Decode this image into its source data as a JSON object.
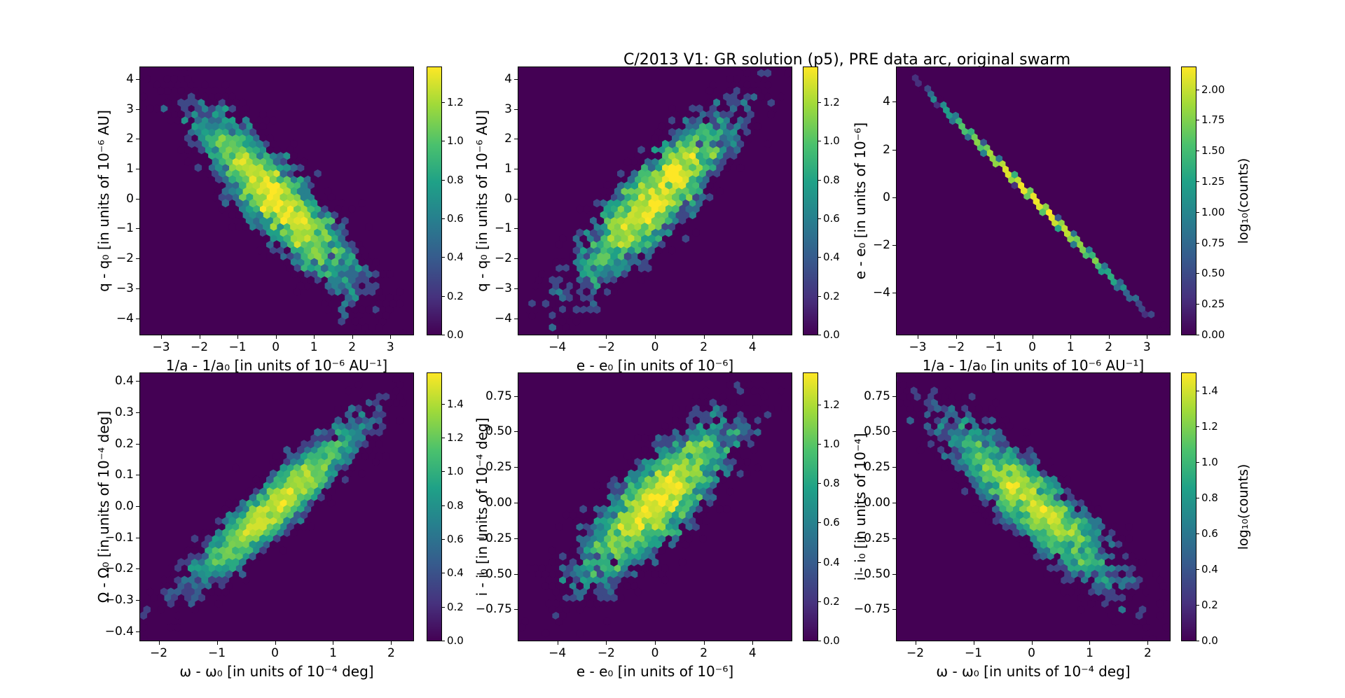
{
  "figure": {
    "title": "C/2013 V1: GR solution (p5), PRE data arc, original swarm",
    "background": "#ffffff",
    "colormap_name": "viridis",
    "colormap_stops": [
      {
        "t": 0.0,
        "color": "#440154"
      },
      {
        "t": 0.14,
        "color": "#46327e"
      },
      {
        "t": 0.29,
        "color": "#365c8d"
      },
      {
        "t": 0.43,
        "color": "#277f8e"
      },
      {
        "t": 0.57,
        "color": "#1fa187"
      },
      {
        "t": 0.71,
        "color": "#4ac16d"
      },
      {
        "t": 0.86,
        "color": "#a0da39"
      },
      {
        "t": 1.0,
        "color": "#fde725"
      }
    ]
  },
  "chart_data": [
    {
      "type": "hexbin",
      "row": 0,
      "col": 0,
      "xlabel": "1/a - 1/a₀ [in units of 10⁻⁶ AU⁻¹]",
      "ylabel": "q - q₀ [in units of 10⁻⁶ AU]",
      "xlim": [
        -3.55,
        3.6
      ],
      "ylim": [
        -4.55,
        4.4
      ],
      "xticks": [
        -3,
        -2,
        -1,
        0,
        1,
        2,
        3
      ],
      "xtick_decimals": 0,
      "yticks": [
        -4,
        -3,
        -2,
        -1,
        0,
        1,
        2,
        3,
        4
      ],
      "ytick_decimals": 0,
      "colorbar": {
        "label": "",
        "ticks": [
          0.0,
          0.2,
          0.4,
          0.6,
          0.8,
          1.0,
          1.2
        ],
        "tick_decimals": 1,
        "vmax": 1.38
      },
      "distribution": {
        "kind": "gaussian",
        "n_points": 3200,
        "sigma_x": 1.05,
        "sigma_y": 1.5,
        "correlation": -0.87,
        "gridsize": 40,
        "seed": 11
      }
    },
    {
      "type": "hexbin",
      "row": 0,
      "col": 1,
      "xlabel": "e - e₀ [in units of 10⁻⁶]",
      "ylabel": "q - q₀ [in units of 10⁻⁶ AU]",
      "xlim": [
        -5.6,
        5.6
      ],
      "ylim": [
        -4.55,
        4.4
      ],
      "xticks": [
        -4,
        -2,
        0,
        2,
        4
      ],
      "xtick_decimals": 0,
      "yticks": [
        -4,
        -3,
        -2,
        -1,
        0,
        1,
        2,
        3,
        4
      ],
      "ytick_decimals": 0,
      "colorbar": {
        "label": "",
        "ticks": [
          0.0,
          0.2,
          0.4,
          0.6,
          0.8,
          1.0,
          1.2
        ],
        "tick_decimals": 1,
        "vmax": 1.38
      },
      "distribution": {
        "kind": "gaussian",
        "n_points": 3200,
        "sigma_x": 1.65,
        "sigma_y": 1.5,
        "correlation": 0.87,
        "gridsize": 40,
        "seed": 22
      }
    },
    {
      "type": "hexbin",
      "row": 0,
      "col": 2,
      "xlabel": "1/a - 1/a₀ [in units of 10⁻⁶ AU⁻¹]",
      "ylabel": "e - e₀ [in units of 10⁻⁶]",
      "xlim": [
        -3.55,
        3.6
      ],
      "ylim": [
        -5.75,
        5.45
      ],
      "xticks": [
        -3,
        -2,
        -1,
        0,
        1,
        2,
        3
      ],
      "xtick_decimals": 0,
      "yticks": [
        -4,
        -2,
        0,
        2,
        4
      ],
      "ytick_decimals": 0,
      "colorbar": {
        "label": "log₁₀(counts)",
        "ticks": [
          0.0,
          0.25,
          0.5,
          0.75,
          1.0,
          1.25,
          1.5,
          1.75,
          2.0
        ],
        "tick_decimals": 2,
        "vmax": 2.18
      },
      "distribution": {
        "kind": "line",
        "n_points": 3200,
        "sigma_x": 1.05,
        "slope": -1.62,
        "jitter": 0.03,
        "gridsize": 44,
        "seed": 33
      }
    },
    {
      "type": "hexbin",
      "row": 1,
      "col": 0,
      "xlabel": "ω - ω₀ [in units of 10⁻⁴ deg]",
      "ylabel": "Ω - Ω₀ [in units of 10⁻⁴ deg]",
      "xlim": [
        -2.32,
        2.38
      ],
      "ylim": [
        -0.43,
        0.425
      ],
      "xticks": [
        -2,
        -1,
        0,
        1,
        2
      ],
      "xtick_decimals": 0,
      "yticks": [
        -0.4,
        -0.3,
        -0.2,
        -0.1,
        0.0,
        0.1,
        0.2,
        0.3,
        0.4
      ],
      "ytick_decimals": 1,
      "colorbar": {
        "label": "",
        "ticks": [
          0.0,
          0.2,
          0.4,
          0.6,
          0.8,
          1.0,
          1.2,
          1.4
        ],
        "tick_decimals": 1,
        "vmax": 1.58
      },
      "distribution": {
        "kind": "gaussian",
        "n_points": 3200,
        "sigma_x": 0.75,
        "sigma_y": 0.13,
        "correlation": 0.93,
        "gridsize": 40,
        "seed": 44
      }
    },
    {
      "type": "hexbin",
      "row": 1,
      "col": 1,
      "xlabel": "e - e₀ [in units of 10⁻⁶]",
      "ylabel": "i - i₀ [in units of 10⁻⁴ deg]",
      "xlim": [
        -5.6,
        5.6
      ],
      "ylim": [
        -0.97,
        0.91
      ],
      "xticks": [
        -4,
        -2,
        0,
        2,
        4
      ],
      "xtick_decimals": 0,
      "yticks": [
        -0.75,
        -0.5,
        -0.25,
        0.0,
        0.25,
        0.5,
        0.75
      ],
      "ytick_decimals": 2,
      "colorbar": {
        "label": "",
        "ticks": [
          0.0,
          0.2,
          0.4,
          0.6,
          0.8,
          1.0,
          1.2
        ],
        "tick_decimals": 1,
        "vmax": 1.36
      },
      "distribution": {
        "kind": "gaussian",
        "n_points": 3200,
        "sigma_x": 1.65,
        "sigma_y": 0.29,
        "correlation": 0.82,
        "gridsize": 40,
        "seed": 55
      }
    },
    {
      "type": "hexbin",
      "row": 1,
      "col": 2,
      "xlabel": "ω - ω₀ [in units of 10⁻⁴ deg]",
      "ylabel": "i - i₀ [in units of 10⁻⁴]",
      "xlim": [
        -2.32,
        2.38
      ],
      "ylim": [
        -0.97,
        0.91
      ],
      "xticks": [
        -2,
        -1,
        0,
        1,
        2
      ],
      "xtick_decimals": 0,
      "yticks": [
        -0.75,
        -0.5,
        -0.25,
        0.0,
        0.25,
        0.5,
        0.75
      ],
      "ytick_decimals": 2,
      "colorbar": {
        "label": "log₁₀(counts)",
        "ticks": [
          0.0,
          0.2,
          0.4,
          0.6,
          0.8,
          1.0,
          1.2,
          1.4
        ],
        "tick_decimals": 1,
        "vmax": 1.5
      },
      "distribution": {
        "kind": "gaussian",
        "n_points": 3200,
        "sigma_x": 0.75,
        "sigma_y": 0.29,
        "correlation": -0.88,
        "gridsize": 40,
        "seed": 66
      }
    }
  ]
}
